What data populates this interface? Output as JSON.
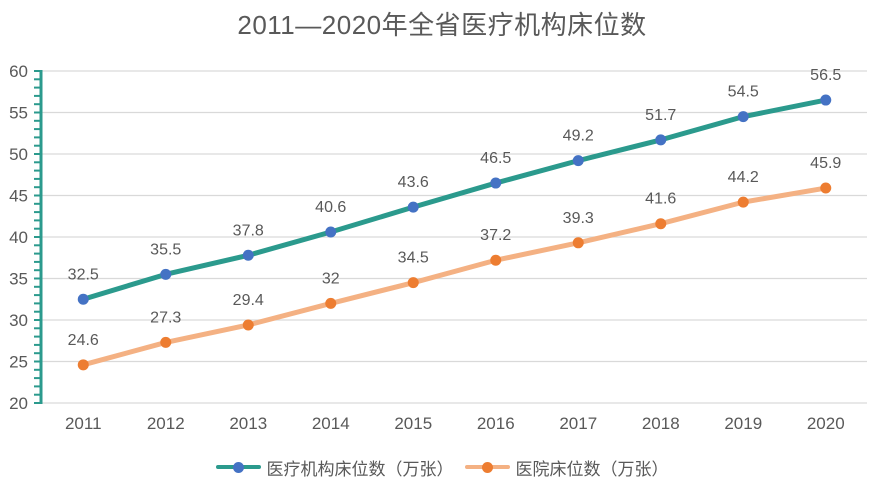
{
  "chart_data": {
    "type": "line",
    "title": "2011—2020年全省医疗机构床位数",
    "categories": [
      "2011",
      "2012",
      "2013",
      "2014",
      "2015",
      "2016",
      "2017",
      "2018",
      "2019",
      "2020"
    ],
    "series": [
      {
        "name": "医疗机构床位数（万张）",
        "values": [
          32.5,
          35.5,
          37.8,
          40.6,
          43.6,
          46.5,
          49.2,
          51.7,
          54.5,
          56.5
        ],
        "line_color": "#2B9A8D",
        "marker_color": "#4472C4"
      },
      {
        "name": "医院床位数（万张）",
        "values": [
          24.6,
          27.3,
          29.4,
          32,
          34.5,
          37.2,
          39.3,
          41.6,
          44.2,
          45.9
        ],
        "line_color": "#F4B183",
        "marker_color": "#ED7D31"
      }
    ],
    "xlabel": "",
    "ylabel": "",
    "ylim": [
      20,
      60
    ],
    "y_major_step": 5,
    "y_minor_step": 1,
    "y_tick_labels": [
      "20",
      "25",
      "30",
      "35",
      "40",
      "45",
      "50",
      "55",
      "60"
    ],
    "data_labels": true,
    "grid": true,
    "legend_position": "bottom",
    "colors": {
      "axis_line": "#2B9A8D",
      "gridline": "#D9D9D9",
      "text": "#595959",
      "background": "#FFFFFF"
    }
  }
}
